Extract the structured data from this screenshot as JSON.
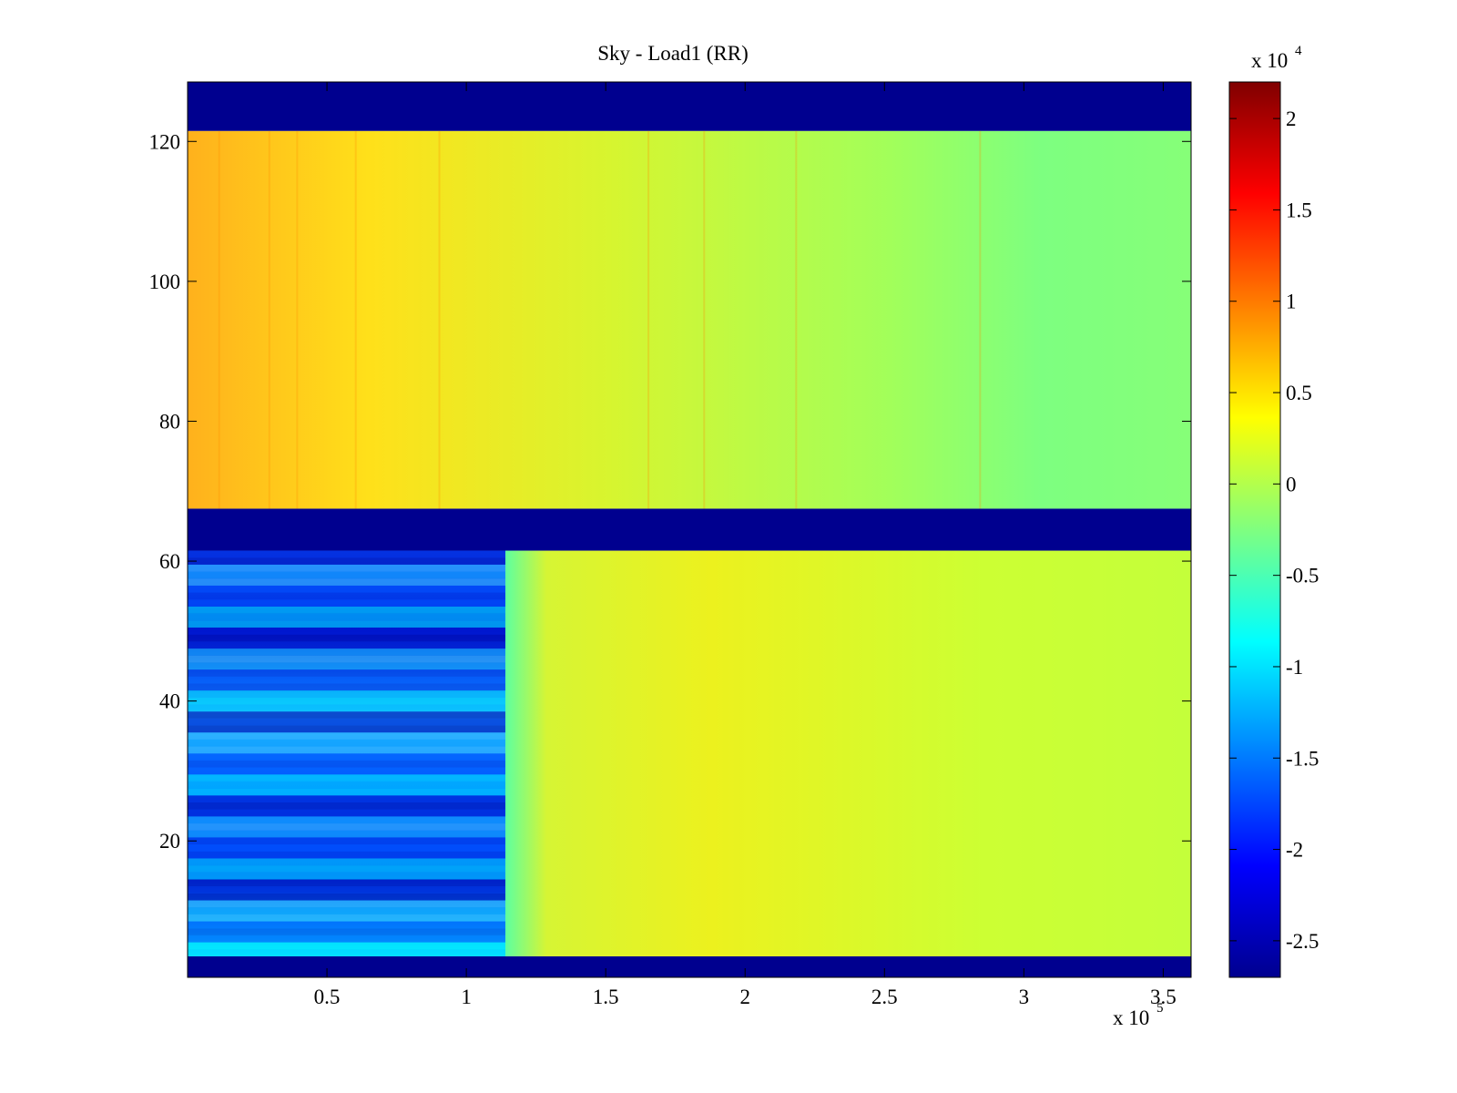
{
  "chart_data": {
    "type": "heatmap",
    "title": "Sky - Load1 (RR)",
    "xlabel": "",
    "ylabel": "",
    "x_exponent_label": "x 10",
    "x_exponent": "5",
    "colorbar_exponent_label": "x 10",
    "colorbar_exponent": "4",
    "xlim": [
      0,
      3.6
    ],
    "ylim": [
      0.5,
      128.5
    ],
    "x_ticks": [
      0.5,
      1,
      1.5,
      2,
      2.5,
      3,
      3.5
    ],
    "x_tick_labels": [
      "0.5",
      "1",
      "1.5",
      "2",
      "2.5",
      "3",
      "3.5"
    ],
    "y_ticks": [
      20,
      40,
      60,
      80,
      100,
      120
    ],
    "y_tick_labels": [
      "20",
      "40",
      "60",
      "80",
      "100",
      "120"
    ],
    "colorbar_limits": [
      -2.7,
      2.2
    ],
    "colorbar_ticks": [
      -2.5,
      -2,
      -1.5,
      -1,
      -0.5,
      0,
      0.5,
      1,
      1.5,
      2
    ],
    "colorbar_tick_labels": [
      "-2.5",
      "-2",
      "-1.5",
      "-1",
      "-0.5",
      "0",
      "0.5",
      "1",
      "1.5",
      "2"
    ],
    "colormap": "jet",
    "colorbar_location": "right",
    "grid": false,
    "regions": [
      {
        "name": "bottom-flag-band",
        "y_range": [
          0.5,
          3.5
        ],
        "x_range": [
          0,
          3.6
        ],
        "value": -2.7
      },
      {
        "name": "lower-channels-start",
        "y_range": [
          3.5,
          61.5
        ],
        "x_range": [
          0,
          1.14
        ],
        "value": -1.6
      },
      {
        "name": "lower-channels-rest",
        "y_range": [
          3.5,
          61.5
        ],
        "x_range": [
          1.14,
          3.6
        ],
        "value": 0.15
      },
      {
        "name": "middle-flag-band",
        "y_range": [
          61.5,
          67.5
        ],
        "x_range": [
          0,
          3.6
        ],
        "value": -2.7
      },
      {
        "name": "upper-channels",
        "y_range": [
          67.5,
          121.5
        ],
        "x_range": [
          0,
          3.6
        ],
        "value_start": 0.6,
        "value_end": -0.45
      },
      {
        "name": "top-flag-band",
        "y_range": [
          121.5,
          128.5
        ],
        "x_range": [
          0,
          3.6
        ],
        "value": -2.7
      }
    ]
  }
}
